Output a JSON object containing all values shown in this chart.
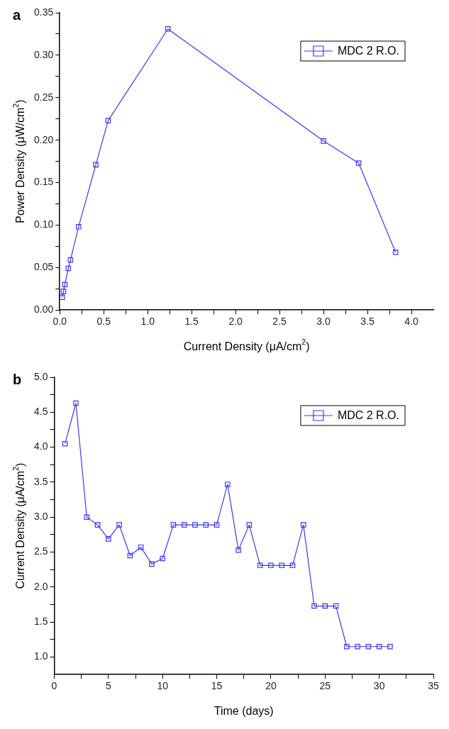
{
  "chart_data": [
    {
      "type": "line",
      "title": "a",
      "xlabel": "Current Density (μA/cm$^{2}$)",
      "ylabel": "Power Density (μW/cm$^{2}$)",
      "x": [
        0.028,
        0.042,
        0.058,
        0.097,
        0.122,
        0.214,
        0.41,
        0.55,
        1.23,
        3.0,
        3.4,
        3.82
      ],
      "series": [
        {
          "name": "MDC 2 R.O.",
          "color": "#3a3af0",
          "values": [
            0.015,
            0.022,
            0.03,
            0.049,
            0.059,
            0.098,
            0.171,
            0.223,
            0.331,
            0.199,
            0.173,
            0.068
          ]
        }
      ],
      "xlim": [
        0,
        4.25
      ],
      "xticks": [
        {
          "value": 0,
          "label": "0.0"
        },
        {
          "value": 0.25,
          "label": null
        },
        {
          "value": 0.5,
          "label": "0.5"
        },
        {
          "value": 0.75,
          "label": null
        },
        {
          "value": 1,
          "label": "1.0"
        },
        {
          "value": 1.25,
          "label": null
        },
        {
          "value": 1.5,
          "label": "1.5"
        },
        {
          "value": 1.75,
          "label": null
        },
        {
          "value": 2,
          "label": "2.0"
        },
        {
          "value": 2.25,
          "label": null
        },
        {
          "value": 2.5,
          "label": "2.5"
        },
        {
          "value": 2.75,
          "label": null
        },
        {
          "value": 3,
          "label": "3.0"
        },
        {
          "value": 3.25,
          "label": null
        },
        {
          "value": 3.5,
          "label": "3.5"
        },
        {
          "value": 3.75,
          "label": null
        },
        {
          "value": 4,
          "label": "4.0"
        }
      ],
      "ylim": [
        0,
        0.35
      ],
      "yticks": [
        {
          "value": 0,
          "label": "0.00"
        },
        {
          "value": 0.025,
          "label": null
        },
        {
          "value": 0.05,
          "label": "0.05"
        },
        {
          "value": 0.075,
          "label": null
        },
        {
          "value": 0.1,
          "label": "0.10"
        },
        {
          "value": 0.125,
          "label": null
        },
        {
          "value": 0.15,
          "label": "0.15"
        },
        {
          "value": 0.175,
          "label": null
        },
        {
          "value": 0.2,
          "label": "0.20"
        },
        {
          "value": 0.225,
          "label": null
        },
        {
          "value": 0.25,
          "label": "0.25"
        },
        {
          "value": 0.275,
          "label": null
        },
        {
          "value": 0.3,
          "label": "0.30"
        },
        {
          "value": 0.325,
          "label": null
        },
        {
          "value": 0.35,
          "label": "0.35"
        }
      ],
      "grid": false,
      "legend": "top right",
      "marker": "square",
      "line_style": "solid"
    },
    {
      "type": "line",
      "title": "b",
      "xlabel": "Time (days)",
      "ylabel": "Current Density (μA/cm$^{2}$)",
      "x": [
        1,
        2,
        3,
        4,
        5,
        6,
        7,
        8,
        9,
        10,
        11,
        12,
        13,
        14,
        15,
        16,
        17,
        18,
        19,
        20,
        21,
        22,
        23,
        24,
        25,
        26,
        27,
        28,
        29,
        30,
        31
      ],
      "series": [
        {
          "name": "MDC 2 R.O.",
          "color": "#3a3af0",
          "values": [
            4.05,
            4.63,
            3.0,
            2.89,
            2.69,
            2.89,
            2.45,
            2.57,
            2.33,
            2.41,
            2.89,
            2.89,
            2.89,
            2.89,
            2.89,
            3.47,
            2.53,
            2.89,
            2.31,
            2.31,
            2.31,
            2.31,
            2.89,
            1.73,
            1.73,
            1.73,
            1.15,
            1.15,
            1.15,
            1.15,
            1.15
          ]
        }
      ],
      "xlim": [
        0,
        35
      ],
      "xticks": [
        0,
        {
          "value": 2.5,
          "label": null
        },
        5,
        {
          "value": 7.5,
          "label": null
        },
        10,
        {
          "value": 12.5,
          "label": null
        },
        15,
        {
          "value": 17.5,
          "label": null
        },
        20,
        {
          "value": 22.5,
          "label": null
        },
        25,
        {
          "value": 27.5,
          "label": null
        },
        30,
        {
          "value": 32.5,
          "label": null
        },
        35
      ],
      "ylim": [
        0.75,
        5.0
      ],
      "yticks": [
        {
          "value": 1,
          "label": "1.0"
        },
        {
          "value": 1.25,
          "label": null
        },
        {
          "value": 1.5,
          "label": "1.5"
        },
        {
          "value": 1.75,
          "label": null
        },
        {
          "value": 2,
          "label": "2.0"
        },
        {
          "value": 2.25,
          "label": null
        },
        {
          "value": 2.5,
          "label": "2.5"
        },
        {
          "value": 2.75,
          "label": null
        },
        {
          "value": 3,
          "label": "3.0"
        },
        {
          "value": 3.25,
          "label": null
        },
        {
          "value": 3.5,
          "label": "3.5"
        },
        {
          "value": 3.75,
          "label": null
        },
        {
          "value": 4,
          "label": "4.0"
        },
        {
          "value": 4.25,
          "label": null
        },
        {
          "value": 4.5,
          "label": "4.5"
        },
        {
          "value": 4.75,
          "label": null
        },
        {
          "value": 5,
          "label": "5.0"
        }
      ],
      "grid": false,
      "legend": "top right",
      "marker": "square",
      "line_style": "solid"
    }
  ]
}
